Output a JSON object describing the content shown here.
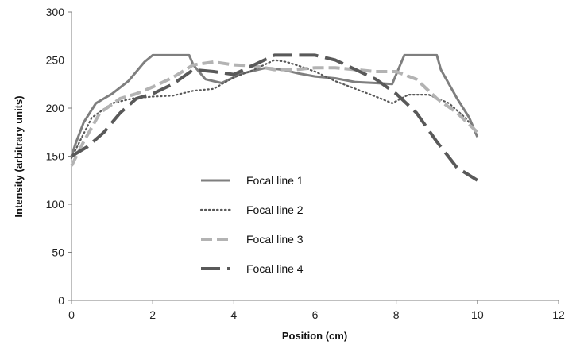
{
  "chart_data": {
    "type": "line",
    "title": "",
    "xlabel": "Position (cm)",
    "ylabel": "Intensity (arbitrary units)",
    "xlim": [
      0,
      12
    ],
    "ylim": [
      0,
      300
    ],
    "xticks": [
      0,
      2,
      4,
      6,
      8,
      10,
      12
    ],
    "yticks": [
      0,
      50,
      100,
      150,
      200,
      250,
      300
    ],
    "grid": false,
    "legend_position": "center-left",
    "series": [
      {
        "name": "Focal line 1",
        "color": "#7f7f7f",
        "dash": "solid",
        "x": [
          0,
          0.1,
          0.3,
          0.6,
          1.0,
          1.4,
          1.8,
          2.0,
          2.5,
          2.9,
          3.0,
          3.3,
          3.7,
          4.2,
          4.8,
          5.2,
          5.6,
          6.0,
          6.5,
          7.0,
          7.5,
          7.9,
          8.0,
          8.2,
          8.6,
          9.0,
          9.1,
          9.5,
          9.8,
          10.0
        ],
        "y": [
          150,
          163,
          185,
          205,
          215,
          228,
          248,
          255,
          255,
          255,
          245,
          230,
          226,
          236,
          242,
          240,
          236,
          233,
          231,
          227,
          226,
          225,
          235,
          255,
          255,
          255,
          240,
          210,
          190,
          170
        ]
      },
      {
        "name": "Focal line 2",
        "color": "#595959",
        "dash": "dotted",
        "x": [
          0,
          0.2,
          0.5,
          1.0,
          1.5,
          2.0,
          2.5,
          3.0,
          3.5,
          4.0,
          4.5,
          5.0,
          5.3,
          5.6,
          6.0,
          6.5,
          7.0,
          7.5,
          7.9,
          8.3,
          8.8,
          9.3,
          9.7,
          10.0
        ],
        "y": [
          148,
          165,
          190,
          205,
          210,
          212,
          213,
          218,
          220,
          232,
          240,
          250,
          248,
          244,
          238,
          228,
          220,
          212,
          205,
          214,
          214,
          205,
          190,
          175
        ]
      },
      {
        "name": "Focal line 3",
        "color": "#b3b3b3",
        "dash": "dashed",
        "x": [
          0,
          0.3,
          0.7,
          1.2,
          1.6,
          2.0,
          2.5,
          3.0,
          3.5,
          4.0,
          4.5,
          5.0,
          5.5,
          6.0,
          6.5,
          7.0,
          7.5,
          8.0,
          8.5,
          9.0,
          9.5,
          10.0
        ],
        "y": [
          140,
          165,
          195,
          210,
          215,
          222,
          232,
          245,
          248,
          245,
          244,
          240,
          240,
          242,
          242,
          240,
          238,
          238,
          230,
          210,
          195,
          175
        ]
      },
      {
        "name": "Focal line 4",
        "color": "#595959",
        "dash": "longdash",
        "x": [
          0,
          0.4,
          0.8,
          1.2,
          1.6,
          2.0,
          2.5,
          3.0,
          3.5,
          4.0,
          4.5,
          5.0,
          5.5,
          6.0,
          6.5,
          7.0,
          7.5,
          8.0,
          8.5,
          9.0,
          9.5,
          10.0
        ],
        "y": [
          150,
          160,
          175,
          195,
          210,
          215,
          225,
          240,
          238,
          235,
          245,
          255,
          255,
          255,
          250,
          240,
          230,
          215,
          195,
          165,
          138,
          125
        ]
      }
    ]
  }
}
